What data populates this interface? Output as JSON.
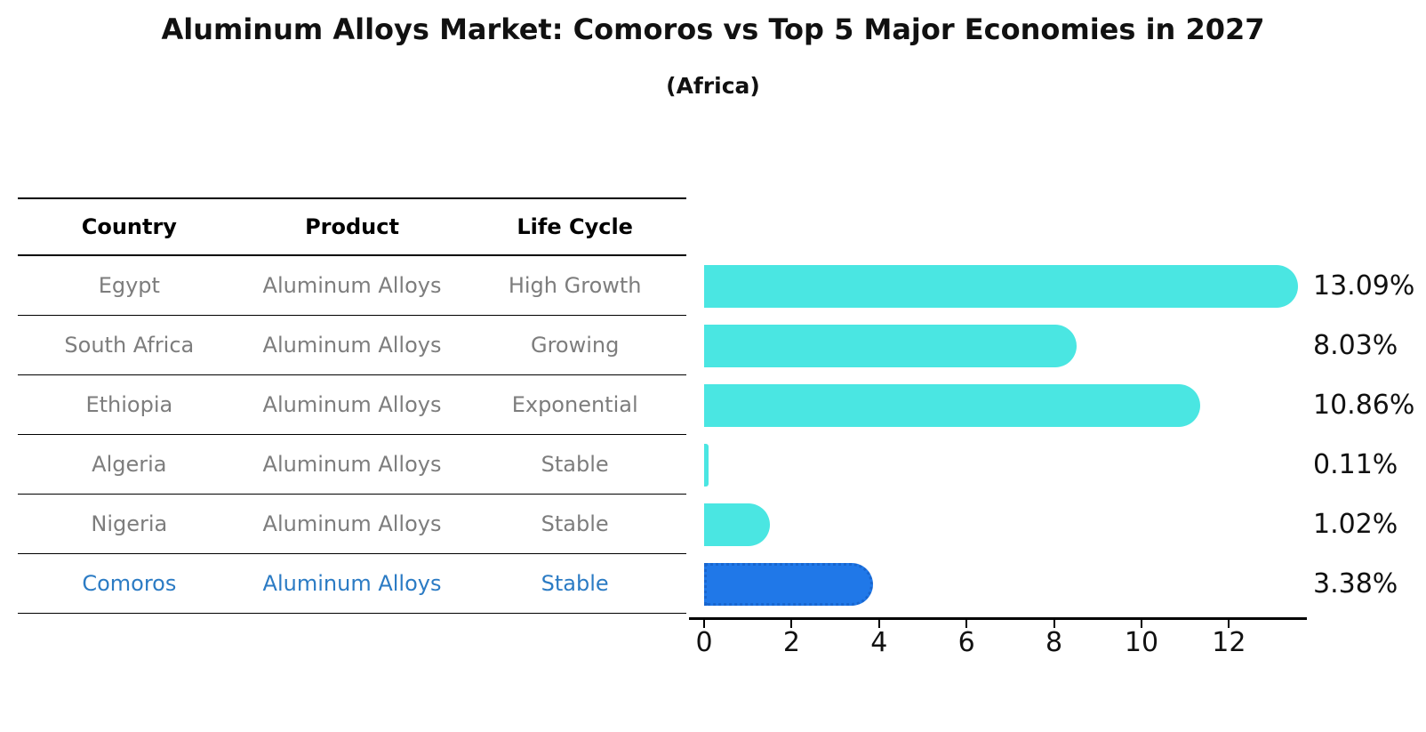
{
  "title": "Aluminum Alloys Market: Comoros vs Top 5 Major Economies in 2027",
  "subtitle": "(Africa)",
  "table": {
    "headers": [
      "Country",
      "Product",
      "Life Cycle"
    ],
    "rows": [
      {
        "country": "Egypt",
        "product": "Aluminum Alloys",
        "life_cycle": "High Growth",
        "highlighted": false
      },
      {
        "country": "South Africa",
        "product": "Aluminum Alloys",
        "life_cycle": "Growing",
        "highlighted": false
      },
      {
        "country": "Ethiopia",
        "product": "Aluminum Alloys",
        "life_cycle": "Exponential",
        "highlighted": false
      },
      {
        "country": "Algeria",
        "product": "Aluminum Alloys",
        "life_cycle": "Stable",
        "highlighted": false
      },
      {
        "country": "Nigeria",
        "product": "Aluminum Alloys",
        "life_cycle": "Stable",
        "highlighted": false
      },
      {
        "country": "Comoros",
        "product": "Aluminum Alloys",
        "life_cycle": "Stable",
        "highlighted": true
      }
    ]
  },
  "chart_data": {
    "type": "bar",
    "orientation": "horizontal",
    "categories": [
      "Egypt",
      "South Africa",
      "Ethiopia",
      "Algeria",
      "Nigeria",
      "Comoros"
    ],
    "values": [
      13.09,
      8.03,
      10.86,
      0.11,
      1.02,
      3.38
    ],
    "value_labels": [
      "13.09%",
      "8.03%",
      "10.86%",
      "0.11%",
      "1.02%",
      "3.38%"
    ],
    "unit": "percent",
    "xlim": [
      0,
      13.8
    ],
    "xticks": [
      0,
      2,
      4,
      6,
      8,
      10,
      12
    ],
    "grid": false,
    "legend": "none",
    "bar_color": "#4ae6e2",
    "highlight_bar_color": "#2078e8",
    "highlight_bar_border_color": "#1866cf",
    "highlight_text_color": "#2b7bc4",
    "highlight_index": 5
  }
}
